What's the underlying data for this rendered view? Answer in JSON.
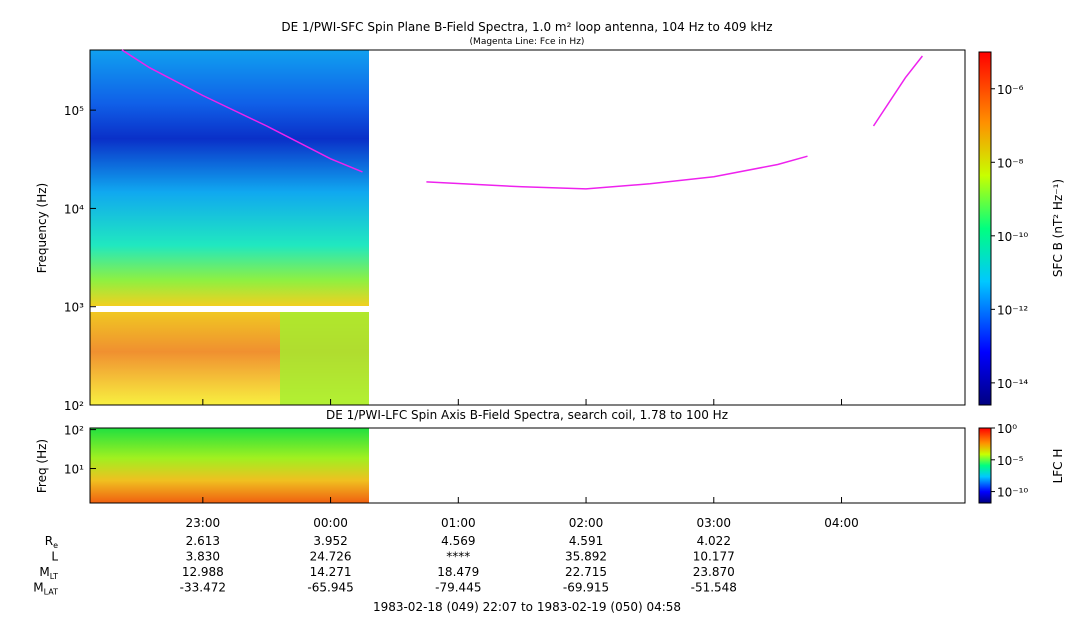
{
  "chart_data": [
    {
      "type": "spectrogram",
      "title": "DE 1/PWI-SFC  Spin Plane B-Field Spectra, 1.0 m² loop antenna, 104 Hz to 409 kHz",
      "subtitle": "(Magenta Line: Fce in Hz)",
      "y_label": "Frequency (Hz)",
      "colorbar_label": "SFC B (nT² Hz⁻¹)",
      "log_y": true,
      "ylim": [
        100,
        409000
      ],
      "yticks": [
        {
          "value": 100,
          "label": "10²"
        },
        {
          "value": 1000,
          "label": "10³"
        },
        {
          "value": 10000,
          "label": "10⁴"
        },
        {
          "value": 100000,
          "label": "10⁵"
        }
      ],
      "xlim": [
        "1983-02-18T22:07",
        "1983-02-19T04:58"
      ],
      "zlim": [
        2.5e-15,
        1e-05
      ],
      "zticks": [
        {
          "value": 1e-06,
          "label": "10⁻⁶"
        },
        {
          "value": 1e-08,
          "label": "10⁻⁸"
        },
        {
          "value": 1e-10,
          "label": "10⁻¹⁰"
        },
        {
          "value": 1e-12,
          "label": "10⁻¹²"
        },
        {
          "value": 1e-14,
          "label": "10⁻¹⁴"
        }
      ],
      "series": [
        {
          "name": "Fce",
          "color": "#ee22ee",
          "x": [
            "1983-02-18T22:22",
            "1983-02-18T22:35",
            "1983-02-18T23:00",
            "1983-02-18T23:30",
            "1983-02-19T00:00",
            "1983-02-19T00:15",
            null,
            "1983-02-19T00:45",
            "1983-02-19T01:30",
            "1983-02-19T02:00",
            "1983-02-19T02:30",
            "1983-02-19T03:00",
            "1983-02-19T03:30",
            "1983-02-19T03:44",
            null,
            "1983-02-19T04:15",
            "1983-02-19T04:30",
            "1983-02-19T04:38"
          ],
          "values": [
            410000,
            270000,
            141000,
            69000,
            32000,
            23500,
            null,
            18600,
            16600,
            15800,
            17800,
            21000,
            28000,
            34000,
            null,
            69000,
            214000,
            355000
          ]
        }
      ]
    },
    {
      "type": "spectrogram",
      "title": "DE 1/PWI-LFC  Spin Axis B-Field Spectra, search coil, 1.78 to 100 Hz",
      "y_label": "Freq (Hz)",
      "colorbar_label": "LFC H",
      "log_y": true,
      "ylim": [
        1.3,
        110
      ],
      "yticks": [
        {
          "value": 10,
          "label": "10¹"
        },
        {
          "value": 100,
          "label": "10²"
        }
      ],
      "xlim": [
        "1983-02-18T22:07",
        "1983-02-19T04:58"
      ],
      "xticks": [
        {
          "value": "1983-02-18T23:00",
          "label": "23:00"
        },
        {
          "value": "1983-02-19T00:00",
          "label": "00:00"
        },
        {
          "value": "1983-02-19T01:00",
          "label": "01:00"
        },
        {
          "value": "1983-02-19T02:00",
          "label": "02:00"
        },
        {
          "value": "1983-02-19T03:00",
          "label": "03:00"
        },
        {
          "value": "1983-02-19T04:00",
          "label": "04:00"
        }
      ],
      "zlim": [
        1.6e-12,
        1
      ],
      "zticks": [
        {
          "value": 1,
          "label": "10⁰"
        },
        {
          "value": 1e-05,
          "label": "10⁻⁵"
        },
        {
          "value": 1e-10,
          "label": "10⁻¹⁰"
        }
      ]
    }
  ],
  "ephemeris": {
    "rows": [
      {
        "name": "R",
        "sub": "e",
        "values": [
          "2.613",
          "3.952",
          "4.569",
          "4.591",
          "4.022"
        ]
      },
      {
        "name": "L",
        "sub": "",
        "values": [
          "3.830",
          "24.726",
          "****",
          "35.892",
          "10.177"
        ]
      },
      {
        "name": "M",
        "sub": "LT",
        "values": [
          "12.988",
          "14.271",
          "18.479",
          "22.715",
          "23.870"
        ]
      },
      {
        "name": "M",
        "sub": "LAT",
        "values": [
          "-33.472",
          "-65.945",
          "-79.445",
          "-69.915",
          "-51.548"
        ]
      }
    ],
    "footer": "1983-02-18 (049) 22:07 to 1983-02-19 (050) 04:58"
  }
}
